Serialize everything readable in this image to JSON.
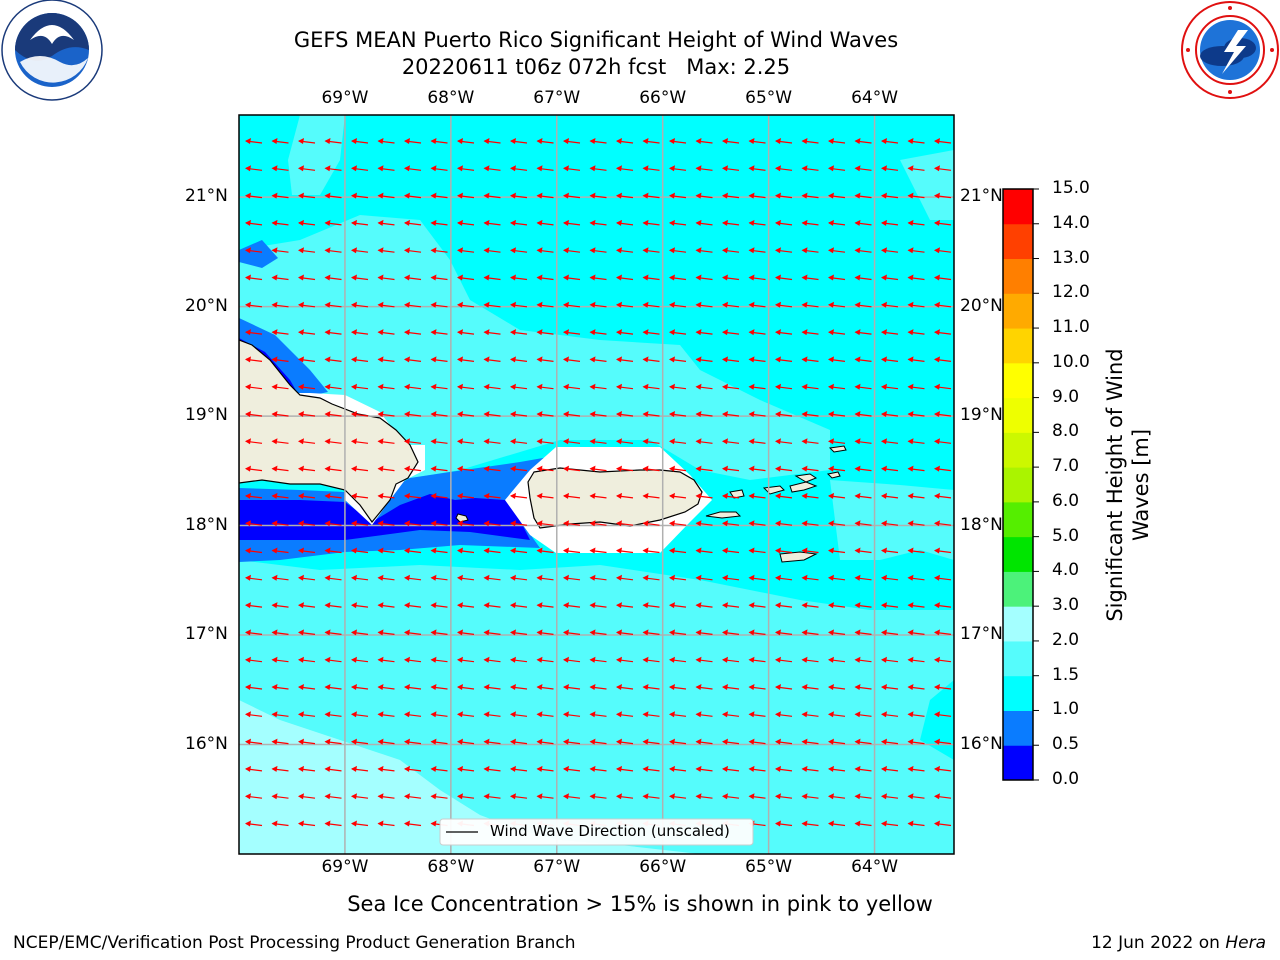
{
  "title_line1": "GEFS MEAN Puerto Rico Significant Height of Wind Waves",
  "title_line2": "20220611 t06z 072h fcst   Max: 2.25",
  "logos": {
    "left": {
      "name": "NOAA",
      "ring_text": "NATIONAL OCEANIC AND ATMOSPHERIC ADMINISTRATION · U.S. DEPARTMENT OF COMMERCE",
      "color": "#1a3a7a"
    },
    "right": {
      "name": "NATIONAL WEATHER SERVICE",
      "color": "#e01010"
    }
  },
  "map": {
    "lon_range": [
      -70.0,
      -63.25
    ],
    "lat_range": [
      15.0,
      21.75
    ],
    "lon_ticks": [
      {
        "value": -69,
        "label": "69°W"
      },
      {
        "value": -68,
        "label": "68°W"
      },
      {
        "value": -67,
        "label": "67°W"
      },
      {
        "value": -66,
        "label": "66°W"
      },
      {
        "value": -65,
        "label": "65°W"
      },
      {
        "value": -64,
        "label": "64°W"
      }
    ],
    "lat_ticks": [
      {
        "value": 21,
        "label": "21°N"
      },
      {
        "value": 20,
        "label": "20°N"
      },
      {
        "value": 19,
        "label": "19°N"
      },
      {
        "value": 18,
        "label": "18°N"
      },
      {
        "value": 17,
        "label": "17°N"
      },
      {
        "value": 16,
        "label": "16°N"
      }
    ],
    "grid": true,
    "max_value": 2.25,
    "wave_direction": "westward",
    "arrow_color": "#ff0000",
    "legend_label": "Wind Wave Direction (unscaled)",
    "legend_position": "bottom-center"
  },
  "colorbar": {
    "label": "Significant Height of Wind Waves [m]",
    "label_line1": "Significant Height of Wind",
    "label_line2": "Waves [m]",
    "levels": [
      0.0,
      0.5,
      1.0,
      1.5,
      2.0,
      3.0,
      4.0,
      5.0,
      6.0,
      7.0,
      8.0,
      9.0,
      10.0,
      11.0,
      12.0,
      13.0,
      14.0,
      15.0
    ],
    "tick_labels": [
      "0.0",
      "0.5",
      "1.0",
      "1.5",
      "2.0",
      "3.0",
      "4.0",
      "5.0",
      "6.0",
      "7.0",
      "8.0",
      "9.0",
      "10.0",
      "11.0",
      "12.0",
      "13.0",
      "14.0",
      "15.0"
    ],
    "colors": [
      "#0000ff",
      "#0a7cff",
      "#00ffff",
      "#55fcfc",
      "#a4ffff",
      "#4cf27a",
      "#00e500",
      "#55ee00",
      "#aaf400",
      "#ccf800",
      "#eeff00",
      "#ffff00",
      "#ffd400",
      "#ffaa00",
      "#ff7f00",
      "#ff4000",
      "#ff0000"
    ]
  },
  "caption": "Sea Ice Concentration > 15% is shown in pink to yellow",
  "footer_left": "NCEP/EMC/Verification Post Processing Product Generation Branch",
  "footer_right_prefix": "12 Jun 2022 on ",
  "footer_right_host": "Hera"
}
